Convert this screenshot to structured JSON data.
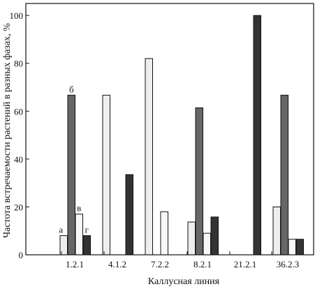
{
  "chart_data": {
    "type": "bar",
    "xlabel": "Каллусная линия",
    "ylabel": "Частота встречаемости растений в разных фазах, %",
    "ylim": [
      0,
      105
    ],
    "yticks": [
      0,
      20,
      40,
      60,
      80,
      100
    ],
    "grid": false,
    "legend": "none",
    "categories": [
      "1.2.1",
      "4.1.2",
      "7.2.2",
      "8.2.1",
      "21.2.1",
      "36.2.3"
    ],
    "series": [
      {
        "name": "а",
        "color": "#eeeeee",
        "values": [
          8,
          66.7,
          82,
          13.7,
          0,
          20
        ]
      },
      {
        "name": "б",
        "color": "#666666",
        "values": [
          66.7,
          0,
          0,
          61.4,
          0,
          66.7
        ]
      },
      {
        "name": "в",
        "color": "#f7f7f7",
        "values": [
          17,
          0,
          18,
          9,
          0,
          6.5
        ]
      },
      {
        "name": "г",
        "color": "#333333",
        "values": [
          8,
          33.5,
          0,
          15.8,
          100,
          6.5
        ]
      }
    ],
    "bar_labels": [
      {
        "text": "а",
        "category": 0,
        "series": 0
      },
      {
        "text": "б",
        "category": 0,
        "series": 1
      },
      {
        "text": "в",
        "category": 0,
        "series": 2
      },
      {
        "text": "г",
        "category": 0,
        "series": 3
      }
    ]
  }
}
